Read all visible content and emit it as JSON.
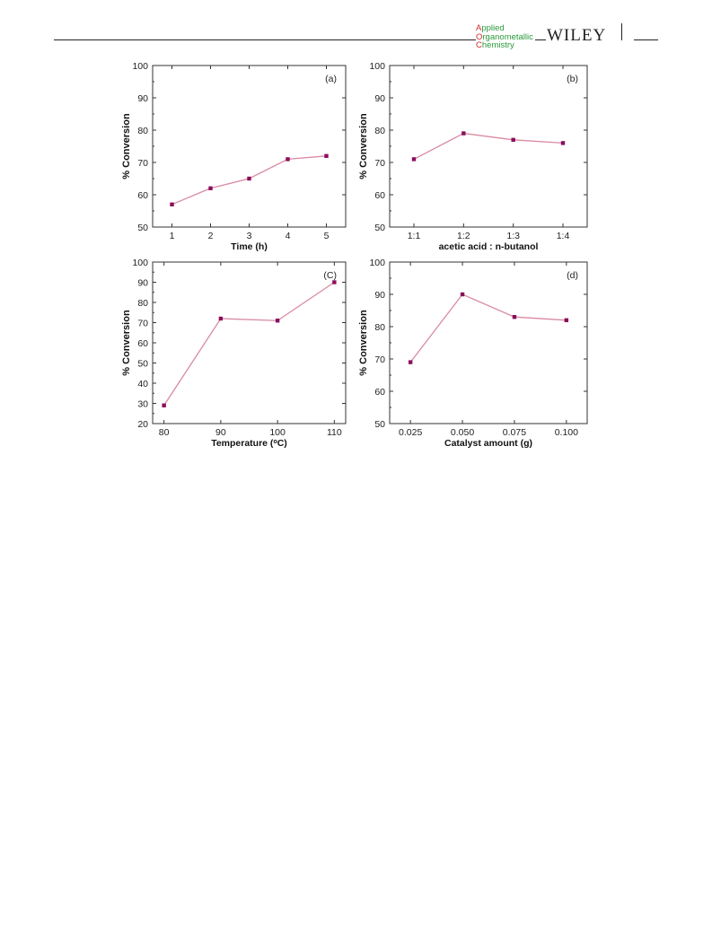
{
  "header": {
    "journal_lines": [
      {
        "initial": "A",
        "rest": "pplied"
      },
      {
        "initial": "O",
        "rest": "rganometallic"
      },
      {
        "initial": "C",
        "rest": "hemistry"
      }
    ],
    "publisher": "WILEY"
  },
  "colors": {
    "line": "#d98aa3",
    "marker": "#8b0f5c",
    "axis": "#333333",
    "journal": "#2a9a3a",
    "journal_initial": "#d42a2a"
  },
  "chart_data": [
    {
      "type": "line",
      "panel": "(a)",
      "xlabel": "Time (h)",
      "ylabel": "% Conversion",
      "x": [
        1,
        2,
        3,
        4,
        5
      ],
      "values": [
        57,
        62,
        65,
        71,
        72
      ],
      "xticks": [
        "1",
        "2",
        "3",
        "4",
        "5"
      ],
      "yticks": [
        "50",
        "60",
        "70",
        "80",
        "90",
        "100"
      ],
      "ylim": [
        50,
        100
      ],
      "xlim": [
        0.5,
        5.5
      ]
    },
    {
      "type": "line",
      "panel": "(b)",
      "xlabel": "acetic acid : n-butanol",
      "ylabel": "% Conversion",
      "categories": [
        "1:1",
        "1:2",
        "1:3",
        "1:4"
      ],
      "values": [
        71,
        79,
        77,
        76
      ],
      "yticks": [
        "50",
        "60",
        "70",
        "80",
        "90",
        "100"
      ],
      "ylim": [
        50,
        100
      ]
    },
    {
      "type": "line",
      "panel": "(C)",
      "xlabel": "Temperature (",
      "xlabel_sup": "o",
      "xlabel_end": "C)",
      "ylabel": "% Conversion",
      "x": [
        80,
        90,
        100,
        110
      ],
      "values": [
        29,
        72,
        71,
        90
      ],
      "xticks": [
        "80",
        "90",
        "100",
        "110"
      ],
      "yticks": [
        "20",
        "30",
        "40",
        "50",
        "60",
        "70",
        "80",
        "90",
        "100"
      ],
      "ylim": [
        20,
        100
      ],
      "xlim": [
        78,
        112
      ]
    },
    {
      "type": "line",
      "panel": "(d)",
      "xlabel": "Catalyst amount (g)",
      "ylabel": "% Conversion",
      "x": [
        0.025,
        0.05,
        0.075,
        0.1
      ],
      "values": [
        69,
        90,
        83,
        82
      ],
      "xticks": [
        "0.025",
        "0.050",
        "0.075",
        "0.100"
      ],
      "yticks": [
        "50",
        "60",
        "70",
        "80",
        "90",
        "100"
      ],
      "ylim": [
        50,
        100
      ],
      "xlim": [
        0.015,
        0.11
      ]
    }
  ]
}
